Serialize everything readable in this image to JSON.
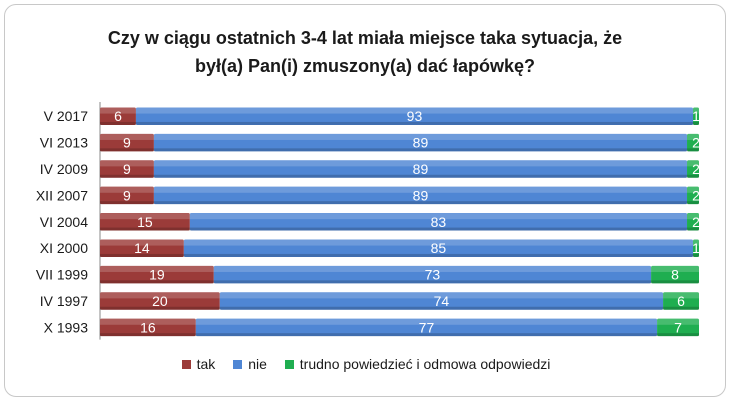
{
  "chart_data": {
    "type": "bar",
    "orientation": "horizontal",
    "stacked": true,
    "title_lines": [
      "Czy w ciągu ostatnich 3-4 lat miała miejsce taka sytuacja, że",
      "był(a) Pan(i) zmuszony(a) dać łapówkę?"
    ],
    "categories": [
      "V 2017",
      "VI 2013",
      "IV 2009",
      "XII 2007",
      "VI 2004",
      "XI 2000",
      "VII 1999",
      "IV 1997",
      "X 1993"
    ],
    "series": [
      {
        "name": "tak",
        "color": "#9b3b39",
        "values": [
          6,
          9,
          9,
          9,
          15,
          14,
          19,
          20,
          16
        ]
      },
      {
        "name": "nie",
        "color": "#4f86d4",
        "values": [
          93,
          89,
          89,
          89,
          83,
          85,
          73,
          74,
          77
        ]
      },
      {
        "name": "trudno powiedzieć i odmowa odpowiedzi",
        "color": "#1fae50",
        "values": [
          1,
          2,
          2,
          2,
          2,
          1,
          8,
          6,
          7
        ]
      }
    ],
    "xlim": [
      0,
      100
    ],
    "legend_position": "bottom",
    "grid": false
  }
}
